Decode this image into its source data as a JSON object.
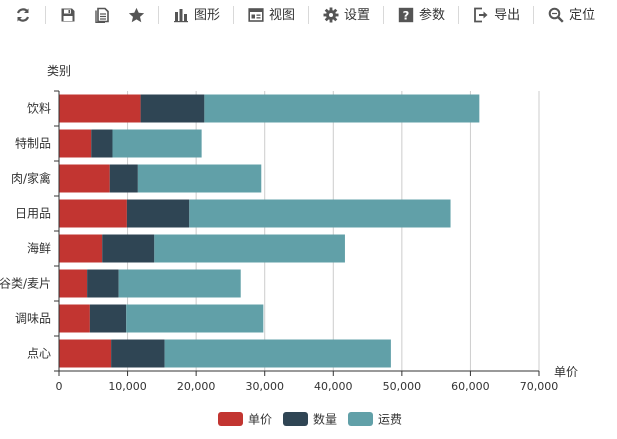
{
  "toolbar": {
    "items": [
      {
        "icon": "refresh-icon",
        "label": ""
      },
      {
        "icon": "save-icon",
        "label": ""
      },
      {
        "icon": "document-icon",
        "label": ""
      },
      {
        "icon": "star-icon",
        "label": ""
      },
      {
        "icon": "bar-chart-icon",
        "label": "图形"
      },
      {
        "icon": "view-icon",
        "label": "视图"
      },
      {
        "icon": "gear-icon",
        "label": "设置"
      },
      {
        "icon": "question-icon",
        "label": "参数"
      },
      {
        "icon": "export-icon",
        "label": "导出"
      },
      {
        "icon": "search-icon",
        "label": "定位"
      }
    ]
  },
  "colors": {
    "series_1": "#c23531",
    "series_2": "#2f4554",
    "series_3": "#61a0a8",
    "axis": "#333333",
    "grid": "#cccccc"
  },
  "chart_data": {
    "type": "bar",
    "orientation": "horizontal",
    "stacked": true,
    "y_axis_label": "类别",
    "x_axis_label": "单价",
    "categories": [
      "饮料",
      "特制品",
      "肉/家禽",
      "日用品",
      "海鲜",
      "谷类/麦片",
      "调味品",
      "点心"
    ],
    "series": [
      {
        "name": "单价",
        "values": [
          11900,
          4700,
          7400,
          9900,
          6300,
          4100,
          4500,
          7600
        ]
      },
      {
        "name": "数量",
        "values": [
          9300,
          3100,
          4100,
          9100,
          7600,
          4600,
          5300,
          7800
        ]
      },
      {
        "name": "运费",
        "values": [
          40100,
          13000,
          18000,
          38100,
          27800,
          17800,
          20000,
          33000
        ]
      }
    ],
    "xlim": [
      0,
      70000
    ],
    "x_ticks": [
      "0",
      "10,000",
      "20,000",
      "30,000",
      "40,000",
      "50,000",
      "60,000",
      "70,000"
    ],
    "x_tick_values": [
      0,
      10000,
      20000,
      30000,
      40000,
      50000,
      60000,
      70000
    ],
    "grid": true,
    "legend_position": "bottom-center"
  }
}
